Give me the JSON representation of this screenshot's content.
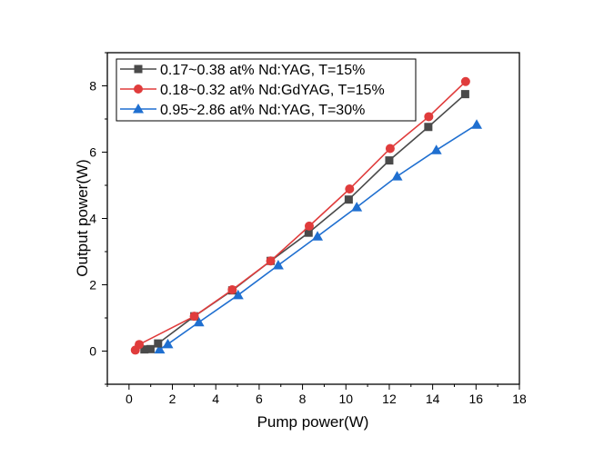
{
  "chart_data": {
    "type": "line",
    "title": "",
    "xlabel": "Pump power(W)",
    "ylabel": "Output power(W)",
    "xlim": [
      -1,
      18
    ],
    "ylim": [
      -1,
      9
    ],
    "xticks": [
      0,
      2,
      4,
      6,
      8,
      10,
      12,
      14,
      16,
      18
    ],
    "yticks": [
      0,
      2,
      4,
      6,
      8
    ],
    "grid": false,
    "legend_position": "top-left",
    "series": [
      {
        "name": "0.17~0.38 at% Nd:YAG, T=15%",
        "color": "#4a4a4a",
        "marker": "square",
        "x": [
          0.71,
          0.99,
          1.34,
          3.01,
          4.76,
          6.53,
          8.28,
          10.13,
          12.0,
          13.8,
          15.5
        ],
        "y": [
          0.05,
          0.06,
          0.23,
          1.05,
          1.83,
          2.72,
          3.57,
          4.57,
          5.75,
          6.76,
          7.75
        ]
      },
      {
        "name": "0.18~0.32 at% Nd:GdYAG, T=15%",
        "color": "#e03c3c",
        "marker": "circle",
        "x": [
          0.29,
          0.47,
          3.01,
          4.76,
          6.53,
          8.31,
          10.17,
          12.04,
          13.82,
          15.52
        ],
        "y": [
          0.03,
          0.2,
          1.05,
          1.85,
          2.72,
          3.77,
          4.89,
          6.11,
          7.07,
          8.13
        ]
      },
      {
        "name": "0.95~2.86 at% Nd:YAG, T=30%",
        "color": "#1f6fd0",
        "marker": "triangle",
        "x": [
          1.41,
          1.79,
          3.22,
          5.03,
          6.88,
          8.69,
          10.5,
          12.36,
          14.17,
          16.03
        ],
        "y": [
          0.05,
          0.21,
          0.87,
          1.69,
          2.59,
          3.46,
          4.34,
          5.27,
          6.06,
          6.83
        ]
      }
    ]
  }
}
